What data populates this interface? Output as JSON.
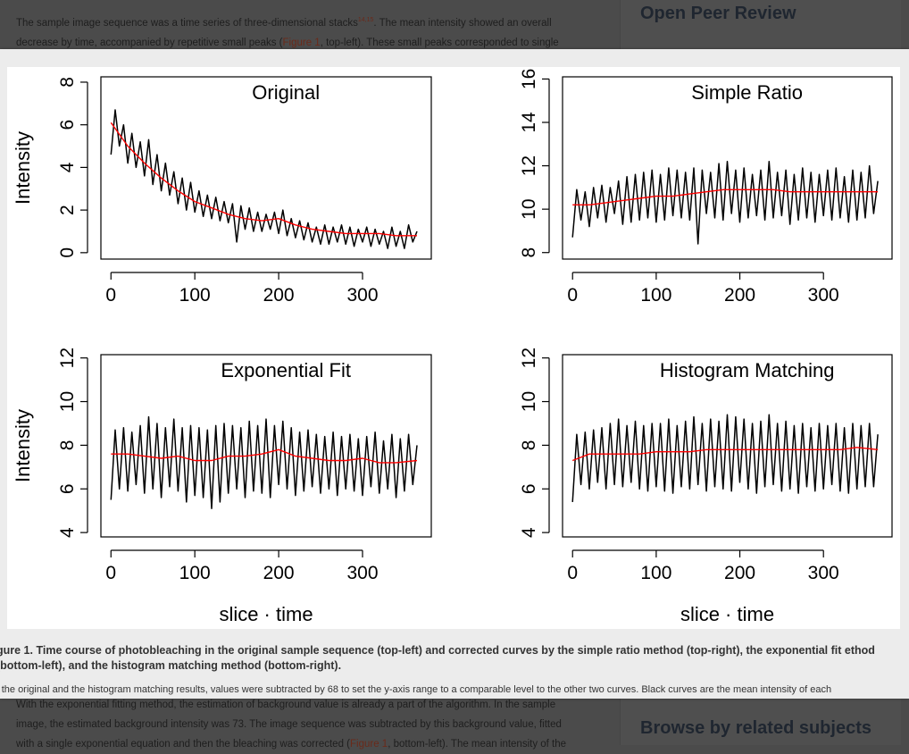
{
  "background": {
    "para_top": [
      "The sample image sequence was a time series of three-dimensional stacks",
      "14,15",
      ". The mean intensity showed an overall",
      "decrease by time, accompanied by repetitive small peaks (",
      "Figure 1",
      ", top-left). These small peaks corresponded to single"
    ],
    "para_bottom": [
      "With the exponential fitting method, the estimation of background value is already a part of the algorithm. In the sample",
      "image, the estimated background intensity was 73. The image sequence was subtracted by this background value, fitted",
      "with a single exponential equation and then the bleaching was corrected (",
      "Figure 1",
      ", bottom-left). The mean intensity of the"
    ],
    "sidebar_top": "Open Peer Review",
    "sidebar_bottom": "Browse by related subjects"
  },
  "caption": "gure 1. Time course of photobleaching in the original sample sequence (top-left) and corrected curves by the simple ratio method (top-right), the exponential fit ethod (bottom-left), and the histogram matching method (bottom-right).",
  "note": "r the original and the histogram matching results, values were subtracted by 68 to set the y-axis range to a comparable level to the other two curves. Black curves are the mean intensity of each",
  "colors": {
    "mean": "#000000",
    "trend": "#ff0000"
  },
  "chart_data": [
    {
      "type": "line",
      "title": "Original",
      "xlabel": "",
      "ylabel": "Intensity",
      "xlim": [
        -12,
        382
      ],
      "ylim": [
        -0.3,
        8.25
      ],
      "xticks": [
        0,
        100,
        200,
        300
      ],
      "yticks": [
        0,
        2,
        4,
        6,
        8
      ],
      "series": [
        {
          "name": "mean",
          "x_start": 0,
          "x_step": 5,
          "values": [
            4.6,
            6.7,
            5.0,
            6.0,
            4.2,
            5.6,
            4.0,
            5.2,
            3.6,
            5.3,
            3.2,
            4.6,
            2.9,
            4.2,
            2.7,
            3.8,
            2.3,
            3.5,
            2.0,
            3.3,
            1.9,
            2.9,
            1.7,
            2.7,
            1.6,
            2.6,
            1.5,
            2.4,
            1.4,
            2.3,
            0.5,
            2.2,
            1.1,
            2.1,
            1.0,
            1.9,
            1.0,
            1.8,
            1.1,
            1.9,
            0.9,
            2.0,
            0.8,
            1.6,
            0.7,
            1.5,
            0.6,
            1.4,
            0.5,
            1.2,
            0.4,
            1.3,
            0.4,
            1.2,
            0.5,
            1.3,
            0.4,
            1.2,
            0.3,
            1.1,
            0.5,
            1.2,
            0.3,
            1.1,
            0.4,
            1.0,
            0.2,
            1.2,
            0.3,
            1.0,
            0.2,
            1.3,
            0.5,
            1.0
          ]
        },
        {
          "name": "trend",
          "x": [
            0,
            20,
            40,
            60,
            80,
            100,
            120,
            140,
            160,
            180,
            200,
            220,
            240,
            260,
            280,
            300,
            320,
            340,
            365
          ],
          "values": [
            6.1,
            5.0,
            4.2,
            3.5,
            2.9,
            2.4,
            2.1,
            1.8,
            1.6,
            1.5,
            1.6,
            1.3,
            1.1,
            1.0,
            0.9,
            0.9,
            0.9,
            0.8,
            0.8
          ]
        }
      ]
    },
    {
      "type": "line",
      "title": "Simple Ratio",
      "xlabel": "",
      "ylabel": "",
      "xlim": [
        -12,
        382
      ],
      "ylim": [
        7.7,
        16.1
      ],
      "xticks": [
        0,
        100,
        200,
        300
      ],
      "yticks": [
        8,
        10,
        12,
        14,
        16
      ],
      "series": [
        {
          "name": "mean",
          "x_start": 0,
          "x_step": 5,
          "values": [
            8.7,
            10.9,
            9.5,
            10.8,
            9.2,
            11.0,
            9.6,
            11.1,
            9.4,
            11.0,
            9.8,
            11.3,
            9.3,
            11.5,
            9.4,
            11.6,
            9.5,
            11.7,
            9.6,
            11.8,
            9.4,
            11.6,
            9.5,
            11.9,
            9.7,
            11.8,
            9.6,
            11.7,
            9.5,
            11.9,
            8.4,
            11.8,
            9.8,
            11.7,
            9.6,
            12.1,
            9.5,
            12.2,
            9.8,
            11.8,
            9.4,
            11.9,
            9.6,
            11.6,
            9.7,
            11.8,
            9.5,
            12.2,
            9.6,
            11.7,
            9.7,
            11.8,
            9.3,
            11.6,
            9.5,
            11.9,
            9.6,
            11.7,
            9.4,
            11.6,
            9.7,
            11.8,
            9.5,
            11.9,
            9.6,
            11.5,
            9.4,
            11.8,
            9.5,
            11.7,
            9.6,
            12.0,
            9.8,
            11.3
          ]
        },
        {
          "name": "trend",
          "x": [
            0,
            20,
            40,
            60,
            80,
            100,
            120,
            140,
            160,
            180,
            200,
            220,
            240,
            260,
            280,
            300,
            320,
            340,
            365
          ],
          "values": [
            10.2,
            10.2,
            10.3,
            10.4,
            10.5,
            10.6,
            10.6,
            10.7,
            10.8,
            10.9,
            10.9,
            10.9,
            10.9,
            10.8,
            10.8,
            10.8,
            10.8,
            10.8,
            10.8
          ]
        }
      ]
    },
    {
      "type": "line",
      "title": "Exponential Fit",
      "xlabel": "slice · time",
      "ylabel": "Intensity",
      "xlim": [
        -12,
        382
      ],
      "ylim": [
        3.8,
        12.15
      ],
      "xticks": [
        0,
        100,
        200,
        300
      ],
      "yticks": [
        4,
        6,
        8,
        10,
        12
      ],
      "series": [
        {
          "name": "mean",
          "x_start": 0,
          "x_step": 5,
          "values": [
            5.5,
            8.7,
            6.0,
            8.8,
            5.9,
            8.6,
            6.2,
            8.9,
            5.8,
            9.3,
            6.0,
            9.0,
            5.6,
            8.8,
            6.1,
            9.2,
            5.9,
            8.8,
            5.4,
            8.9,
            5.7,
            8.8,
            5.6,
            8.7,
            5.1,
            8.9,
            5.4,
            9.0,
            5.8,
            8.9,
            6.0,
            8.8,
            5.6,
            9.1,
            5.9,
            8.9,
            5.8,
            9.2,
            5.6,
            8.9,
            6.2,
            9.1,
            6.0,
            8.8,
            5.7,
            8.6,
            5.9,
            8.7,
            6.1,
            8.5,
            5.8,
            8.4,
            6.0,
            8.6,
            5.7,
            8.4,
            6.0,
            8.5,
            5.9,
            8.3,
            5.7,
            8.4,
            6.1,
            8.6,
            5.8,
            8.2,
            6.0,
            8.5,
            5.6,
            8.3,
            5.9,
            8.5,
            6.2,
            8.0
          ]
        },
        {
          "name": "trend",
          "x": [
            0,
            20,
            40,
            60,
            80,
            100,
            120,
            140,
            160,
            180,
            200,
            220,
            240,
            260,
            280,
            300,
            320,
            340,
            365
          ],
          "values": [
            7.6,
            7.6,
            7.5,
            7.4,
            7.5,
            7.3,
            7.3,
            7.5,
            7.5,
            7.6,
            7.8,
            7.5,
            7.4,
            7.3,
            7.3,
            7.4,
            7.2,
            7.2,
            7.3
          ]
        }
      ]
    },
    {
      "type": "line",
      "title": "Histogram Matching",
      "xlabel": "slice · time",
      "ylabel": "",
      "xlim": [
        -12,
        382
      ],
      "ylim": [
        3.8,
        12.15
      ],
      "xticks": [
        0,
        100,
        200,
        300
      ],
      "yticks": [
        4,
        6,
        8,
        10,
        12
      ],
      "series": [
        {
          "name": "mean",
          "x_start": 0,
          "x_step": 5,
          "values": [
            5.4,
            8.5,
            6.2,
            8.6,
            6.0,
            8.7,
            6.3,
            8.8,
            6.0,
            9.0,
            6.2,
            9.2,
            6.1,
            8.9,
            6.3,
            9.1,
            6.0,
            8.9,
            5.9,
            9.0,
            6.1,
            9.0,
            5.9,
            9.2,
            5.8,
            8.9,
            6.1,
            9.1,
            6.0,
            9.3,
            6.2,
            9.0,
            5.9,
            9.2,
            6.1,
            9.1,
            6.0,
            9.4,
            5.9,
            9.3,
            6.3,
            9.2,
            6.0,
            9.0,
            5.8,
            9.1,
            6.1,
            9.4,
            6.2,
            9.0,
            5.9,
            9.1,
            6.0,
            8.9,
            5.8,
            9.0,
            6.1,
            8.8,
            5.9,
            9.0,
            6.0,
            8.9,
            6.2,
            9.0,
            5.9,
            8.8,
            5.8,
            9.0,
            6.0,
            8.9,
            6.1,
            9.0,
            6.1,
            8.5
          ]
        },
        {
          "name": "trend",
          "x": [
            0,
            20,
            40,
            60,
            80,
            100,
            120,
            140,
            160,
            180,
            200,
            220,
            240,
            260,
            280,
            300,
            320,
            340,
            365
          ],
          "values": [
            7.3,
            7.6,
            7.6,
            7.6,
            7.6,
            7.7,
            7.7,
            7.7,
            7.8,
            7.8,
            7.8,
            7.8,
            7.8,
            7.8,
            7.8,
            7.8,
            7.8,
            7.9,
            7.8
          ]
        }
      ]
    }
  ]
}
